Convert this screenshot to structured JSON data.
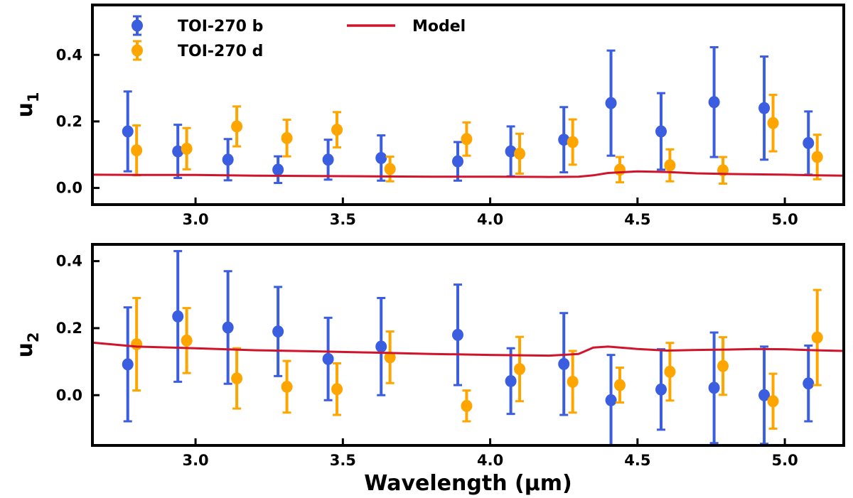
{
  "chart_data": [
    {
      "type": "scatter",
      "panel": "top",
      "ylabel": "u",
      "ylabel_sub": "1",
      "xlabel": "",
      "xlim": [
        2.65,
        5.2
      ],
      "ylim": [
        -0.05,
        0.55
      ],
      "xticks": [
        3.0,
        3.5,
        4.0,
        4.5,
        5.0
      ],
      "xtick_labels": [
        "3.0",
        "3.5",
        "4.0",
        "4.5",
        "5.0"
      ],
      "yticks": [
        0.0,
        0.2,
        0.4
      ],
      "ytick_labels": [
        "0.0",
        "0.2",
        "0.4"
      ],
      "legend": {
        "placement": "top-left",
        "entries": [
          "TOI-270 b",
          "TOI-270 d",
          "Model"
        ]
      },
      "series": [
        {
          "name": "TOI-270 b",
          "color": "#3b5ee0",
          "kind": "errorbar",
          "x": [
            2.77,
            2.94,
            3.11,
            3.28,
            3.45,
            3.63,
            3.89,
            4.07,
            4.25,
            4.41,
            4.58,
            4.76,
            4.93,
            5.08
          ],
          "y": [
            0.17,
            0.11,
            0.085,
            0.055,
            0.085,
            0.09,
            0.08,
            0.11,
            0.145,
            0.255,
            0.17,
            0.258,
            0.24,
            0.135
          ],
          "yerr": [
            0.12,
            0.08,
            0.062,
            0.04,
            0.06,
            0.068,
            0.058,
            0.075,
            0.098,
            0.158,
            0.115,
            0.165,
            0.155,
            0.095
          ]
        },
        {
          "name": "TOI-270 d",
          "color": "#ffa500",
          "kind": "errorbar",
          "x": [
            2.8,
            2.97,
            3.14,
            3.31,
            3.48,
            3.66,
            3.92,
            4.1,
            4.28,
            4.44,
            4.61,
            4.79,
            4.96,
            5.11
          ],
          "y": [
            0.113,
            0.118,
            0.185,
            0.15,
            0.175,
            0.057,
            0.147,
            0.103,
            0.138,
            0.055,
            0.068,
            0.053,
            0.195,
            0.093
          ],
          "yerr": [
            0.075,
            0.062,
            0.06,
            0.055,
            0.053,
            0.037,
            0.05,
            0.06,
            0.068,
            0.038,
            0.048,
            0.04,
            0.085,
            0.067
          ]
        },
        {
          "name": "Model",
          "color": "#d0142c",
          "kind": "line",
          "x": [
            2.65,
            2.8,
            3.0,
            3.2,
            3.4,
            3.6,
            3.8,
            4.0,
            4.2,
            4.3,
            4.35,
            4.4,
            4.5,
            4.6,
            4.7,
            4.8,
            4.9,
            5.0,
            5.1,
            5.2
          ],
          "y": [
            0.04,
            0.039,
            0.039,
            0.037,
            0.036,
            0.035,
            0.034,
            0.034,
            0.033,
            0.034,
            0.038,
            0.045,
            0.05,
            0.048,
            0.044,
            0.042,
            0.041,
            0.04,
            0.038,
            0.037
          ]
        }
      ]
    },
    {
      "type": "scatter",
      "panel": "bottom",
      "ylabel": "u",
      "ylabel_sub": "2",
      "xlabel": "Wavelength (μm)",
      "xlim": [
        2.65,
        5.2
      ],
      "ylim": [
        -0.15,
        0.45
      ],
      "xticks": [
        3.0,
        3.5,
        4.0,
        4.5,
        5.0
      ],
      "xtick_labels": [
        "3.0",
        "3.5",
        "4.0",
        "4.5",
        "5.0"
      ],
      "yticks": [
        0.0,
        0.2,
        0.4
      ],
      "ytick_labels": [
        "0.0",
        "0.2",
        "0.4"
      ],
      "series": [
        {
          "name": "TOI-270 b",
          "color": "#3b5ee0",
          "kind": "errorbar",
          "x": [
            2.77,
            2.94,
            3.11,
            3.28,
            3.45,
            3.63,
            3.89,
            4.07,
            4.25,
            4.41,
            4.58,
            4.76,
            4.93,
            5.08
          ],
          "y": [
            0.092,
            0.235,
            0.202,
            0.19,
            0.108,
            0.145,
            0.18,
            0.042,
            0.093,
            -0.015,
            0.017,
            0.022,
            0.0,
            0.035
          ],
          "yerr": [
            0.17,
            0.195,
            0.168,
            0.133,
            0.123,
            0.145,
            0.15,
            0.098,
            0.152,
            0.135,
            0.12,
            0.165,
            0.145,
            0.113
          ]
        },
        {
          "name": "TOI-270 d",
          "color": "#ffa500",
          "kind": "errorbar",
          "x": [
            2.8,
            2.97,
            3.14,
            3.31,
            3.48,
            3.66,
            3.92,
            4.1,
            4.28,
            4.44,
            4.61,
            4.79,
            4.96,
            5.11
          ],
          "y": [
            0.152,
            0.163,
            0.05,
            0.025,
            0.018,
            0.113,
            -0.032,
            0.078,
            0.04,
            0.03,
            0.07,
            0.087,
            -0.018,
            0.172
          ],
          "yerr": [
            0.138,
            0.097,
            0.09,
            0.077,
            0.077,
            0.077,
            0.046,
            0.096,
            0.092,
            0.052,
            0.086,
            0.086,
            0.082,
            0.142
          ]
        },
        {
          "name": "Model",
          "color": "#d0142c",
          "kind": "line",
          "x": [
            2.65,
            2.8,
            3.0,
            3.2,
            3.4,
            3.6,
            3.8,
            4.0,
            4.2,
            4.3,
            4.35,
            4.4,
            4.5,
            4.6,
            4.7,
            4.8,
            4.9,
            5.0,
            5.1,
            5.2
          ],
          "y": [
            0.157,
            0.145,
            0.14,
            0.134,
            0.131,
            0.127,
            0.123,
            0.12,
            0.118,
            0.123,
            0.142,
            0.145,
            0.138,
            0.133,
            0.135,
            0.136,
            0.138,
            0.137,
            0.134,
            0.132
          ]
        }
      ]
    }
  ]
}
